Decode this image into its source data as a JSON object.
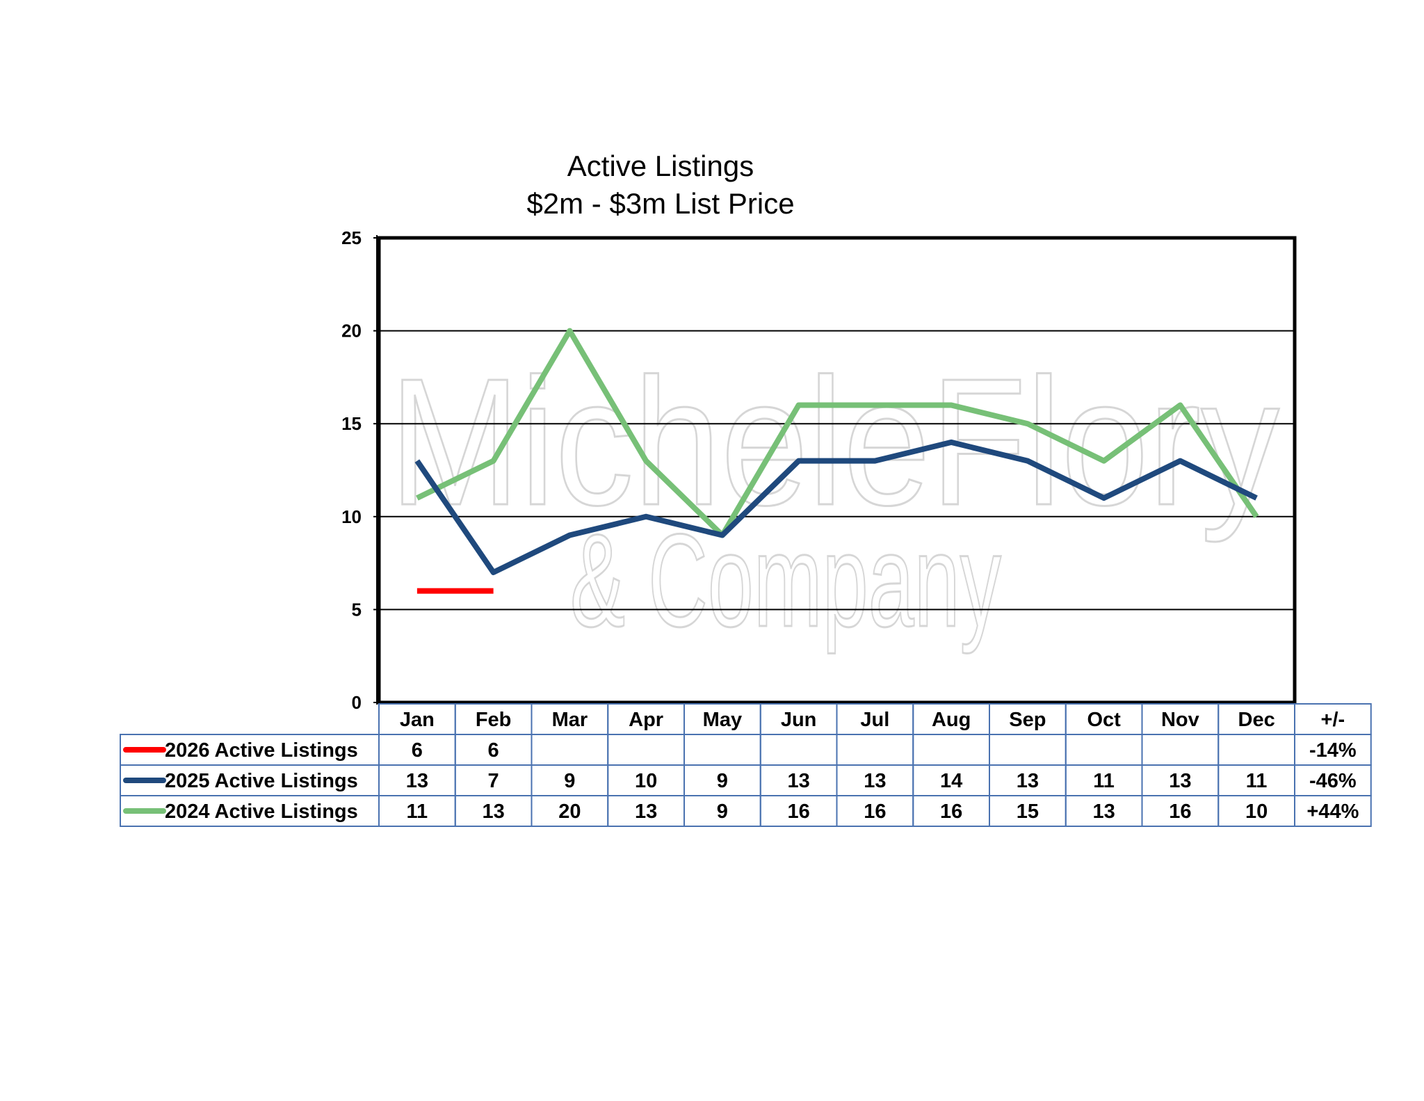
{
  "chart_data": {
    "type": "line",
    "title": "Active Listings",
    "subtitle": "$2m - $3m List Price",
    "categories": [
      "Jan",
      "Feb",
      "Mar",
      "Apr",
      "May",
      "Jun",
      "Jul",
      "Aug",
      "Sep",
      "Oct",
      "Nov",
      "Dec"
    ],
    "change_header": "+/-",
    "ylim": [
      0,
      25
    ],
    "yticks": [
      0,
      5,
      10,
      15,
      20,
      25
    ],
    "grid": true,
    "series": [
      {
        "name": "2026 Active Listings",
        "color": "#ff0000",
        "values": [
          6,
          6,
          null,
          null,
          null,
          null,
          null,
          null,
          null,
          null,
          null,
          null
        ],
        "change": "-14%"
      },
      {
        "name": "2025 Active Listings",
        "color": "#1f497d",
        "values": [
          13,
          7,
          9,
          10,
          9,
          13,
          13,
          14,
          13,
          11,
          13,
          11
        ],
        "change": "-46%"
      },
      {
        "name": "2024 Active Listings",
        "color": "#77c077",
        "values": [
          11,
          13,
          20,
          13,
          9,
          16,
          16,
          16,
          15,
          13,
          16,
          10
        ],
        "change": "+44%"
      }
    ]
  },
  "watermark": {
    "line1": "MicheleFlory",
    "line2": "& Company"
  }
}
